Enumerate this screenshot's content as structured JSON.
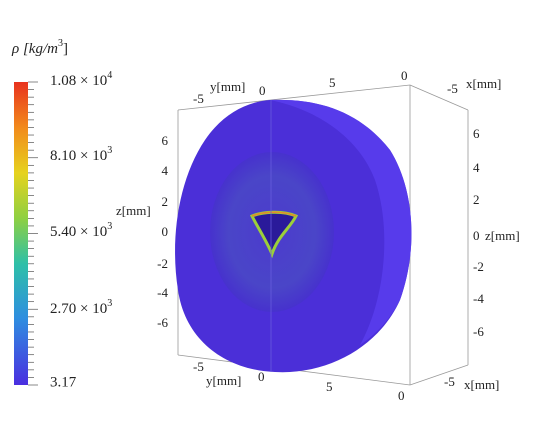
{
  "colorbar": {
    "title": {
      "symbol": "ρ",
      "unit": "[kg/m",
      "exponent": "3",
      "close": "]"
    },
    "ticks": [
      {
        "mantissa": "1.08 × 10",
        "exponent": "4"
      },
      {
        "mantissa": "8.10 × 10",
        "exponent": "3"
      },
      {
        "mantissa": "5.40 × 10",
        "exponent": "3"
      },
      {
        "mantissa": "2.70 × 10",
        "exponent": "3"
      },
      {
        "mantissa": "3.17"
      }
    ]
  },
  "axes": {
    "top_y": {
      "label": "y[mm]",
      "ticks": [
        "-5",
        "0",
        "5"
      ]
    },
    "top_x": {
      "label": "x[mm]",
      "ticks": [
        "0",
        "-5"
      ]
    },
    "left_z": {
      "label": "z[mm]",
      "ticks": [
        "6",
        "4",
        "2",
        "0",
        "-2",
        "-4",
        "-6"
      ]
    },
    "right_z": {
      "label": "z[mm]",
      "ticks": [
        "6",
        "4",
        "2",
        "0",
        "-2",
        "-4",
        "-6"
      ]
    },
    "bottom_y": {
      "label": "y[mm]",
      "ticks": [
        "-5",
        "0",
        "5"
      ]
    },
    "bottom_x": {
      "label": "x[mm]",
      "ticks": [
        "-5",
        "0"
      ]
    }
  }
}
